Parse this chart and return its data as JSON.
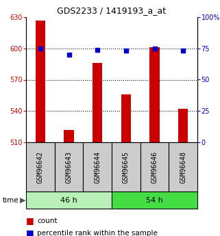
{
  "title": "GDS2233 / 1419193_a_at",
  "samples": [
    "GSM96642",
    "GSM96643",
    "GSM96644",
    "GSM96645",
    "GSM96646",
    "GSM96648"
  ],
  "counts": [
    627,
    522,
    586,
    556,
    601,
    542
  ],
  "percentiles": [
    75,
    70,
    74,
    73,
    75,
    73
  ],
  "ymin": 510,
  "ymax": 630,
  "yticks": [
    510,
    540,
    570,
    600,
    630
  ],
  "y2min": 0,
  "y2max": 100,
  "y2ticks": [
    0,
    25,
    50,
    75,
    100
  ],
  "bar_color": "#cc0000",
  "dot_color": "#0000cc",
  "bar_width": 0.35,
  "group46_color": "#b8f0b8",
  "group54_color": "#44dd44",
  "gray_box_color": "#cccccc",
  "legend_count_label": "count",
  "legend_pct_label": "percentile rank within the sample",
  "time_label": "time",
  "group_labels": [
    "46 h",
    "54 h"
  ],
  "title_fontsize": 9,
  "tick_fontsize": 7,
  "label_fontsize": 7,
  "legend_fontsize": 7.5
}
